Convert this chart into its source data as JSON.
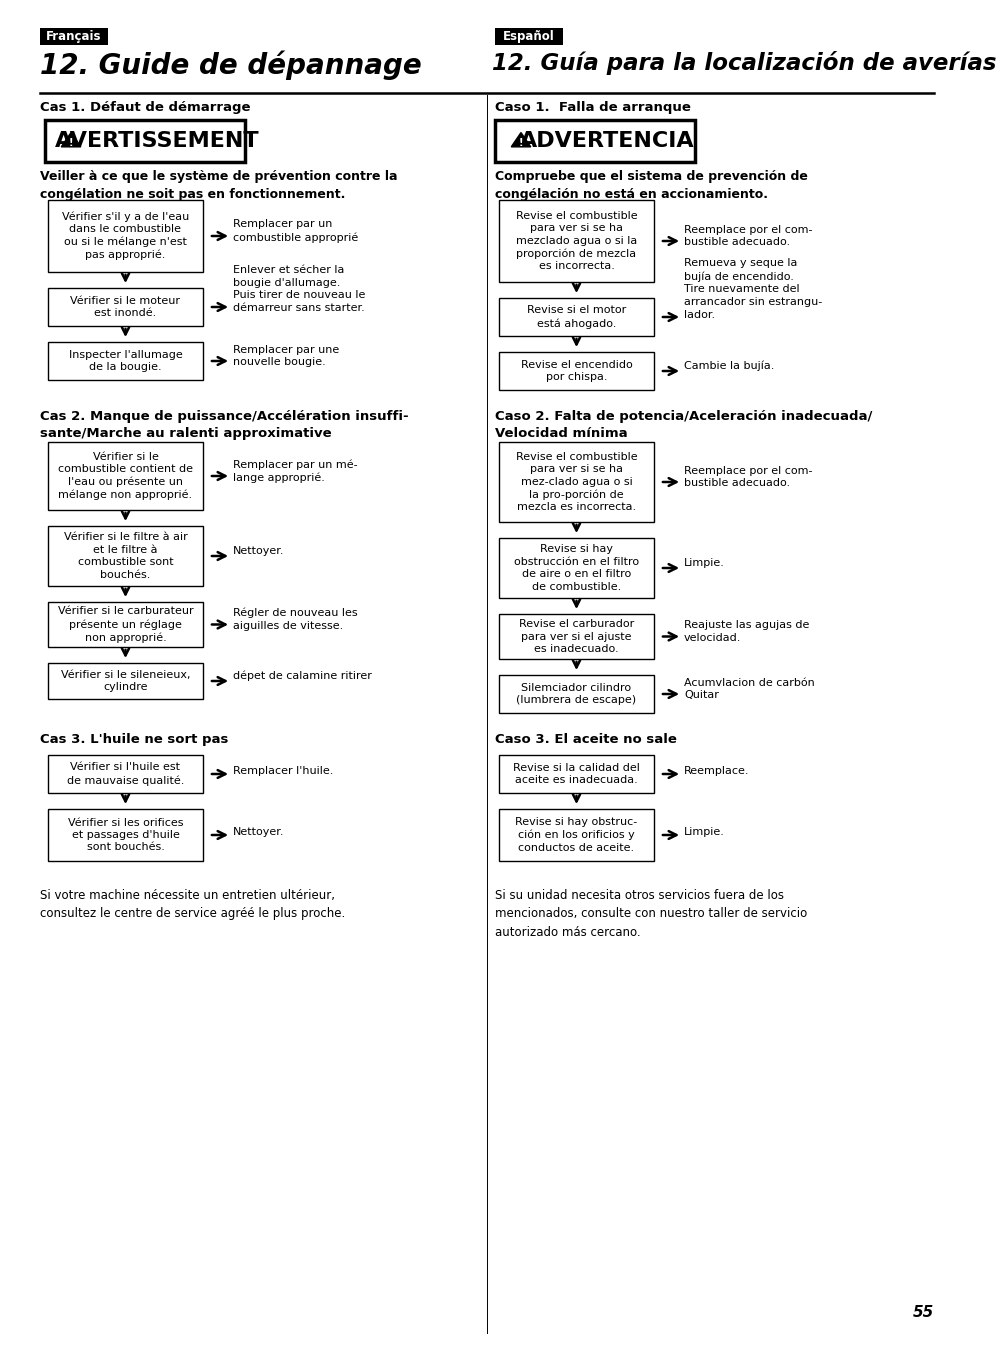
{
  "bg_color": "#ffffff",
  "page_number": "55",
  "left_lang_label": "Français",
  "right_lang_label": "Español",
  "left_title": "12. Guide de dépannage",
  "right_title": "12. Guía para la localización de averías",
  "left_case1_heading": "Cas 1. Défaut de démarrage",
  "right_case1_heading": "Caso 1.  Falla de arranque",
  "left_warning_text": "AVERTISSEMENT",
  "right_warning_text": "ADVERTENCIA",
  "left_warning_body": "Veiller à ce que le système de prévention contre la\ncongélation ne soit pas en fonctionnement.",
  "right_warning_body": "Compruebe que el sistema de prevención de\ncongélación no está en accionamiento.",
  "left_case1_boxes": [
    "Vérifier s'il y a de l'eau\ndans le combustible\nou si le mélange n'est\npas approprié.",
    "Vérifier si le moteur\nest inondé.",
    "Inspecter l'allumage\nde la bougie."
  ],
  "left_case1_arrows": [
    "Remplacer par un\ncombustible approprié",
    "Enlever et sécher la\nbougie d'allumage.\nPuis tirer de nouveau le\ndémarreur sans starter.",
    "Remplacer par une\nnouvelle bougie."
  ],
  "right_case1_boxes": [
    "Revise el combustible\npara ver si se ha\nmezclado agua o si la\nproporción de mezcla\nes incorrecta.",
    "Revise si el motor\nestá ahogado.",
    "Revise el encendido\npor chispa."
  ],
  "right_case1_arrows": [
    "Reemplace por el com-\nbustible adecuado.",
    "Remueva y seque la\nbujía de encendido.\nTire nuevamente del\narrancador sin estrangu-\nlador.",
    "Cambie la bujía."
  ],
  "left_case2_heading": "Cas 2. Manque de puissance/Accélération insuffi-\nsante/Marche au ralenti approximative",
  "right_case2_heading": "Caso 2. Falta de potencia/Aceleración inadecuada/\nVelocidad mínima",
  "left_case2_boxes": [
    "Vérifier si le\ncombustible contient de\nl'eau ou présente un\nmélange non approprié.",
    "Vérifier si le filtre à air\net le filtre à\ncombustible sont\nbouchés.",
    "Vérifier si le carburateur\nprésente un réglage\nnon approprié.",
    "Vérifier si le sileneieux,\ncylindre"
  ],
  "left_case2_arrows": [
    "Remplacer par un mé-\nlange approprié.",
    "Nettoyer.",
    "Régler de nouveau les\naiguilles de vitesse.",
    "dépet de calamine ritirer"
  ],
  "right_case2_boxes": [
    "Revise el combustible\npara ver si se ha\nmez-clado agua o si\nla pro-porción de\nmezcla es incorrecta.",
    "Revise si hay\nobstrucción en el filtro\nde aire o en el filtro\nde combustible.",
    "Revise el carburador\npara ver si el ajuste\nes inadecuado.",
    "Silemciador cilindro\n(lumbrera de escape)"
  ],
  "right_case2_arrows": [
    "Reemplace por el com-\nbustible adecuado.",
    "Limpie.",
    "Reajuste las agujas de\nvelocidad.",
    "Acumvlacion de carbón\nQuitar"
  ],
  "left_case3_heading": "Cas 3. L'huile ne sort pas",
  "right_case3_heading": "Caso 3. El aceite no sale",
  "left_case3_boxes": [
    "Vérifier si l'huile est\nde mauvaise qualité.",
    "Vérifier si les orifices\net passages d'huile\nsont bouchés."
  ],
  "left_case3_arrows": [
    "Remplacer l'huile.",
    "Nettoyer."
  ],
  "right_case3_boxes": [
    "Revise si la calidad del\naceite es inadecuada.",
    "Revise si hay obstruc-\nción en los orificios y\nconductos de aceite."
  ],
  "right_case3_arrows": [
    "Reemplace.",
    "Limpie."
  ],
  "left_footer": "Si votre machine nécessite un entretien ultérieur,\nconsultez le centre de service agréé le plus proche.",
  "right_footer": "Si su unidad necesita otros servicios fuera de los\nmencionados, consulte con nuestro taller de servicio\nautorizado más cercano."
}
